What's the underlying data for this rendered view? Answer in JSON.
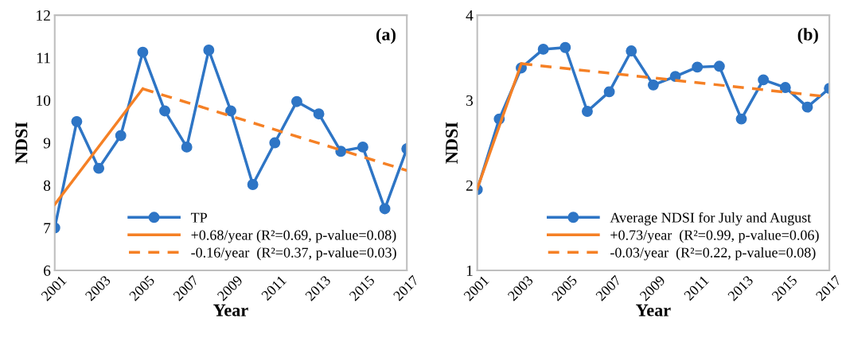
{
  "chart_data": [
    {
      "type": "line",
      "xlabel": "Year",
      "ylabel": "NDSI",
      "annotations": [
        "(a)"
      ],
      "x": [
        2001,
        2002,
        2003,
        2004,
        2005,
        2006,
        2007,
        2008,
        2009,
        2010,
        2011,
        2012,
        2013,
        2014,
        2015,
        2016,
        2017
      ],
      "xlim": [
        2001,
        2017
      ],
      "xticks": [
        2001,
        2003,
        2005,
        2007,
        2009,
        2011,
        2013,
        2015,
        2017
      ],
      "ylim": [
        6,
        12
      ],
      "yticks": [
        6,
        7,
        8,
        9,
        10,
        11,
        12
      ],
      "grid": false,
      "legend": "bottom right",
      "series": [
        {
          "name": "TP",
          "color": "#2e75c5",
          "marker": "circle",
          "line_style": "solid",
          "values": [
            7.0,
            9.5,
            8.4,
            9.17,
            11.13,
            9.75,
            8.9,
            11.18,
            9.75,
            8.02,
            9.0,
            9.97,
            9.68,
            8.8,
            8.9,
            7.45,
            8.86
          ]
        },
        {
          "name": "+0.68/year (R²=0.69, p-value=0.08)",
          "color": "#f58025",
          "marker": "none",
          "line_style": "solid",
          "x": [
            2001,
            2005
          ],
          "values": [
            7.55,
            10.27
          ]
        },
        {
          "name": "-0.16/year  (R²=0.37, p-value=0.03)",
          "color": "#f58025",
          "marker": "none",
          "line_style": "dashed",
          "x": [
            2005,
            2017
          ],
          "values": [
            10.27,
            8.35
          ]
        }
      ]
    },
    {
      "type": "line",
      "xlabel": "Year",
      "ylabel": "NDSI",
      "annotations": [
        "(b)"
      ],
      "x": [
        2001,
        2002,
        2003,
        2004,
        2005,
        2006,
        2007,
        2008,
        2009,
        2010,
        2011,
        2012,
        2013,
        2014,
        2015,
        2016,
        2017
      ],
      "xlim": [
        2001,
        2017
      ],
      "xticks": [
        2001,
        2003,
        2005,
        2007,
        2009,
        2011,
        2013,
        2015,
        2017
      ],
      "ylim": [
        1,
        4
      ],
      "yticks": [
        1,
        2,
        3,
        4
      ],
      "grid": false,
      "legend": "bottom right",
      "series": [
        {
          "name": "Average NDSI for July and August",
          "color": "#2e75c5",
          "marker": "circle",
          "line_style": "solid",
          "values": [
            1.95,
            2.78,
            3.38,
            3.6,
            3.62,
            2.87,
            3.1,
            3.58,
            3.18,
            3.28,
            3.39,
            3.4,
            2.78,
            3.24,
            3.15,
            2.92,
            3.14
          ]
        },
        {
          "name": "+0.73/year  (R²=0.99, p-value=0.06)",
          "color": "#f58025",
          "marker": "none",
          "line_style": "solid",
          "x": [
            2001,
            2003
          ],
          "values": [
            1.96,
            3.43
          ]
        },
        {
          "name": "-0.03/year  (R²=0.22, p-value=0.08)",
          "color": "#f58025",
          "marker": "none",
          "line_style": "dashed",
          "x": [
            2003,
            2017
          ],
          "values": [
            3.43,
            3.04
          ]
        }
      ]
    }
  ]
}
